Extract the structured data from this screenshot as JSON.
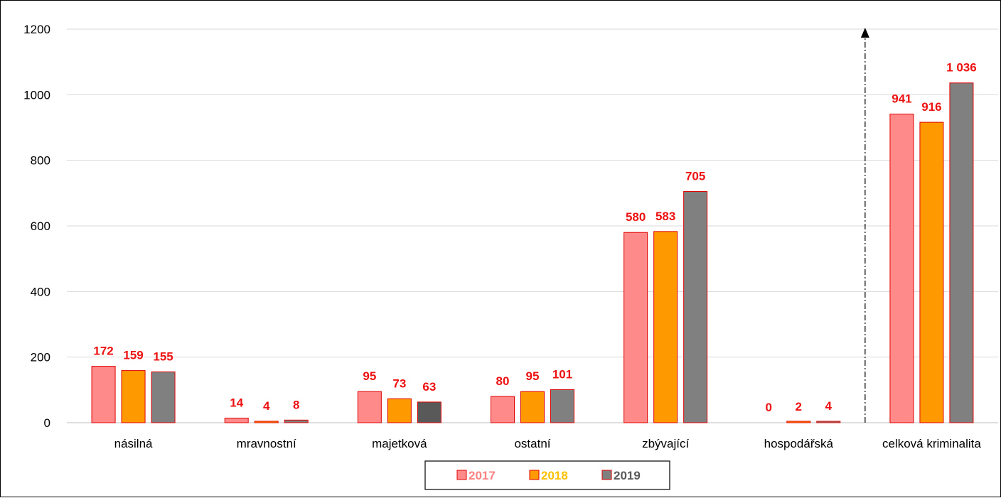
{
  "chart_data": {
    "type": "bar",
    "title": "",
    "xlabel": "",
    "ylabel": "",
    "ylim": [
      0,
      1200
    ],
    "yticks": [
      0,
      200,
      400,
      600,
      800,
      1000,
      1200
    ],
    "grid": true,
    "legend_position": "bottom",
    "categories": [
      "násilná",
      "mravnostní",
      "majetková",
      "ostatní",
      "zbývající",
      "hospodářská",
      "celková kriminalita"
    ],
    "series": [
      {
        "name": "2017",
        "values": [
          172,
          14,
          95,
          80,
          580,
          0,
          941
        ],
        "value_labels": [
          "172",
          "14",
          "95",
          "80",
          "580",
          "0",
          "941"
        ],
        "color": "#ff8a8a",
        "legend_color": "#ff8080"
      },
      {
        "name": "2018",
        "values": [
          159,
          4,
          73,
          95,
          583,
          2,
          916
        ],
        "value_labels": [
          "159",
          "4",
          "73",
          "95",
          "583",
          "2",
          "916"
        ],
        "color": "#ff9900",
        "legend_color": "#ffc000"
      },
      {
        "name": "2019",
        "values": [
          155,
          8,
          63,
          101,
          705,
          4,
          1036
        ],
        "value_labels": [
          "155",
          "8",
          "63",
          "101",
          "705",
          "4",
          "1 036"
        ],
        "color": "#808080",
        "legend_color": "#595959"
      }
    ],
    "highlight_bars": [
      {
        "series": "2019",
        "category": "majetková",
        "color": "#595959"
      }
    ],
    "bar_edge_color": "#e00000",
    "value_label_color": "#ee1111",
    "separator": {
      "after_category": "hospodářská",
      "style": "dash-dot",
      "arrow": "up"
    }
  }
}
